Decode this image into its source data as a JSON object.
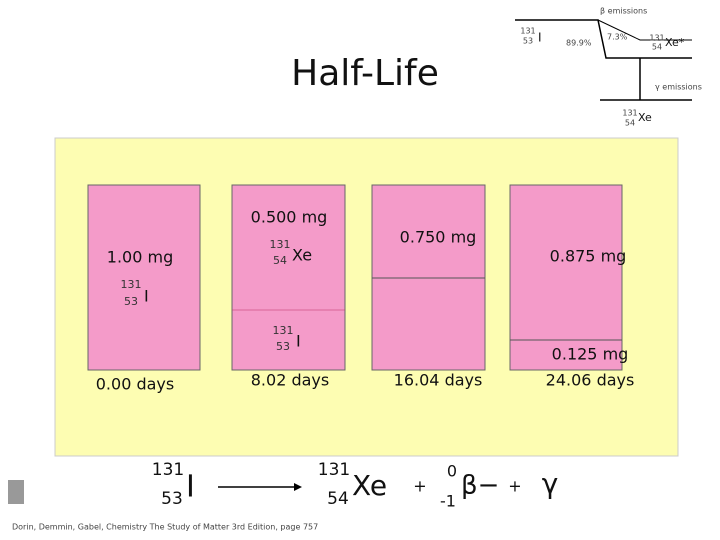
{
  "title": "Half-Life",
  "decay_diagram": {
    "beta_label": "β emissions",
    "parent_mass": "131",
    "parent_atomic": "53",
    "parent_symbol": "I",
    "branch_major": "89.9%",
    "branch_minor": "7.3%",
    "excited_mass": "131",
    "excited_atomic": "54",
    "excited_symbol": "Xe*",
    "gamma_label": "γ emissions",
    "product_mass": "131",
    "product_atomic": "54",
    "product_symbol": "Xe"
  },
  "columns": [
    {
      "time": "0.00 days",
      "top_mass": "1.00 mg",
      "top_isotope_mass": "131",
      "top_isotope_atomic": "53",
      "top_isotope_symbol": "I"
    },
    {
      "time": "8.02 days",
      "top_mass": "0.500 mg",
      "top_isotope_mass": "131",
      "top_isotope_atomic": "54",
      "top_isotope_symbol": "Xe",
      "bottom_isotope_mass": "131",
      "bottom_isotope_atomic": "53",
      "bottom_isotope_symbol": "I"
    },
    {
      "time": "16.04 days",
      "top_mass": "0.750 mg"
    },
    {
      "time": "24.06 days",
      "top_mass": "0.875 mg",
      "bottom_mass": "0.125 mg"
    }
  ],
  "equation": {
    "reactant_mass": "131",
    "reactant_atomic": "53",
    "reactant_symbol": "I",
    "product_mass": "131",
    "product_atomic": "54",
    "product_symbol": "Xe",
    "plus_1": "+",
    "beta_mass": "0",
    "beta_charge": "-1",
    "beta_symbol": "β−",
    "plus_2": "+",
    "gamma_symbol": "γ"
  },
  "citation": "Dorin, Demmin, Gabel, Chemistry The Study of Matter 3rd Edition, page 757"
}
